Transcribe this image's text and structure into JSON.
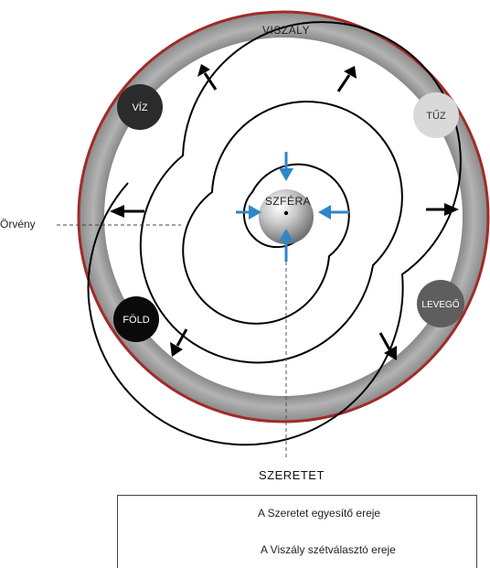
{
  "outer_label": "VISZÁLY",
  "bottom_label": "SZERETET",
  "vortex_label": "Örvény",
  "center_label": "SZFÉRA",
  "elements": [
    {
      "name": "viz",
      "label": "VÍZ",
      "fill": "#2b2b2b",
      "text_color": "#ffffff"
    },
    {
      "name": "tuz",
      "label": "TŰZ",
      "fill": "#d9d9d9",
      "text_color": "#333333"
    },
    {
      "name": "fold",
      "label": "FÖLD",
      "fill": "#0a0a0a",
      "text_color": "#ffffff"
    },
    {
      "name": "levego",
      "label": "LEVEGŐ",
      "fill": "#5e5e5e",
      "text_color": "#ffffff"
    }
  ],
  "legend": [
    {
      "arrow_color": "#2f86c8",
      "text": "A Szeretet egyesítő ereje"
    },
    {
      "arrow_color": "#000000",
      "text": "A Viszály szétválasztó ereje"
    }
  ],
  "colors": {
    "outer_rim": "#a32a2a",
    "outer_band": "#8f8f8f",
    "love_arrow": "#2f86c8",
    "strife_arrow": "#000000"
  }
}
